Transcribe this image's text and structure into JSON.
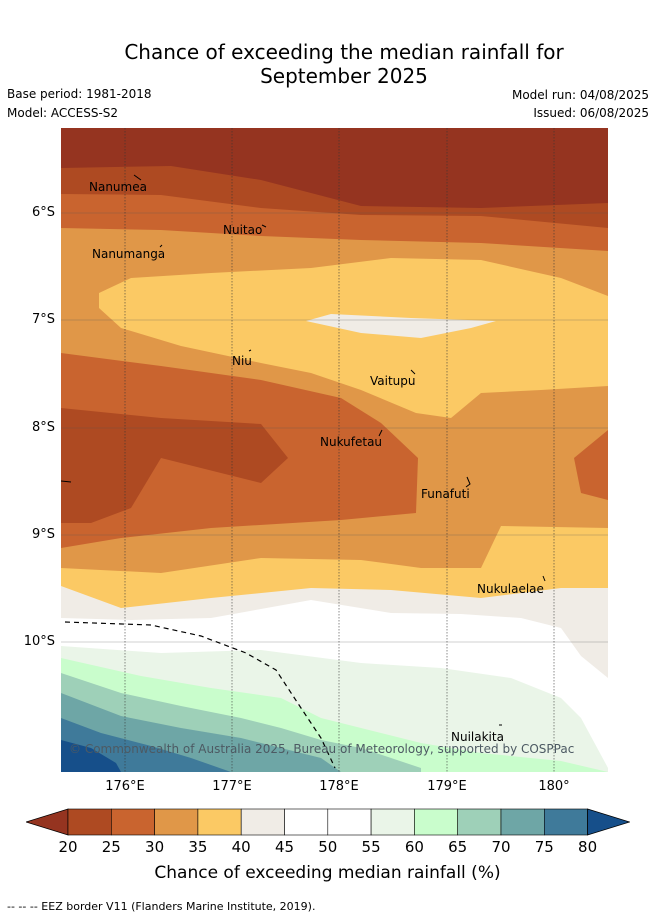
{
  "title_line1": "Chance of exceeding the median rainfall for",
  "title_line2": "September 2025",
  "base_period": "Base period: 1981-2018",
  "model": "Model: ACCESS-S2",
  "model_run": "Model run: 04/08/2025",
  "issued": "Issued: 06/08/2025",
  "lat_labels": [
    "6°S",
    "7°S",
    "8°S",
    "9°S",
    "10°S"
  ],
  "lon_labels": [
    "176°E",
    "177°E",
    "178°E",
    "179°E",
    "180°"
  ],
  "places": [
    {
      "name": "Nanumea"
    },
    {
      "name": "Nuitao"
    },
    {
      "name": "Nanumanga"
    },
    {
      "name": "Niu"
    },
    {
      "name": "Vaitupu"
    },
    {
      "name": "Nukufetau"
    },
    {
      "name": "Funafuti"
    },
    {
      "name": "Nukulaelae"
    },
    {
      "name": "Nuilakita"
    }
  ],
  "copyright": "© Commonwealth of Australia 2025, Bureau of Meteorology, supported by COSPPac",
  "colorbar": {
    "ticks": [
      "20",
      "25",
      "30",
      "35",
      "40",
      "45",
      "50",
      "55",
      "60",
      "65",
      "70",
      "75",
      "80"
    ],
    "colors": [
      "#ae4a22",
      "#c9642f",
      "#e09748",
      "#fbc964",
      "#f0ece6",
      "#ffffff",
      "#ffffff",
      "#eaf5e8",
      "#c9fdcc",
      "#9ed0b8",
      "#6ea6a6",
      "#3f7a9a",
      "#164f8a"
    ],
    "under_color": "#953420",
    "label": "Chance of exceeding median rainfall (%)"
  },
  "footer": "-- -- -- EEZ border V11 (Flanders Marine Institute, 2019)."
}
